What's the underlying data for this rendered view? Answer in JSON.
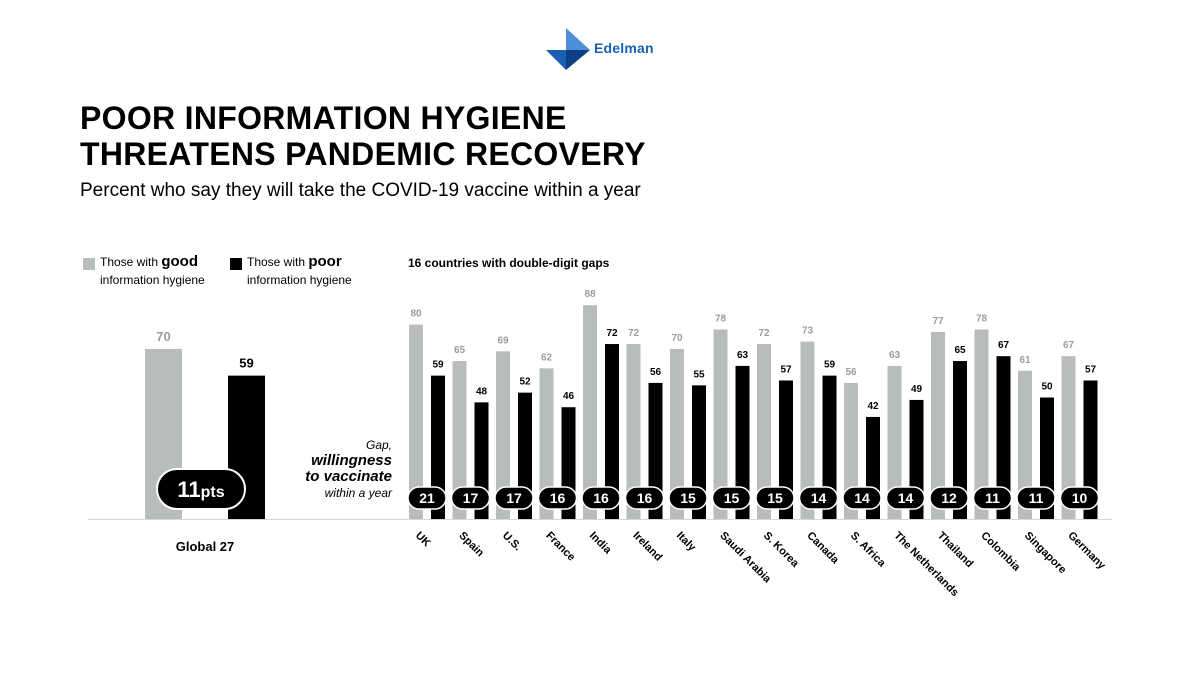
{
  "brand": {
    "name": "Edelman",
    "color": "#1a5fb4",
    "accent_light": "#4f8fd9"
  },
  "title_lines": [
    "POOR INFORMATION HYGIENE",
    "THREATENS PANDEMIC RECOVERY"
  ],
  "subtitle": "Percent who say they will take the COVID-19 vaccine within a year",
  "legend": {
    "good": {
      "prefix": "Those with ",
      "bold": "good",
      "line2": "information hygiene",
      "color": "#b9bcbc"
    },
    "poor": {
      "prefix": "Those with ",
      "bold": "poor",
      "line2": "information hygiene",
      "color": "#000000"
    }
  },
  "gap_label": {
    "line1": "Gap,",
    "line2": "willingness",
    "line3": "to vaccinate",
    "line4": "within a year"
  },
  "section_title": "16 countries with double-digit gaps",
  "chart_data": [
    {
      "type": "bar",
      "title": "Global 27",
      "categories": [
        "Global 27"
      ],
      "series": [
        {
          "name": "Those with good information hygiene",
          "values": [
            70
          ]
        },
        {
          "name": "Those with poor information hygiene",
          "values": [
            59
          ]
        }
      ],
      "gap_labels": [
        {
          "value": "11",
          "unit": "pts"
        }
      ],
      "ylim": [
        0,
        100
      ]
    },
    {
      "type": "bar",
      "title": "16 countries with double-digit gaps",
      "categories": [
        "UK",
        "Spain",
        "U.S.",
        "France",
        "India",
        "Ireland",
        "Italy",
        "Saudi Arabia",
        "S. Korea",
        "Canada",
        "S. Africa",
        "The Netherlands",
        "Thailand",
        "Colombia",
        "Singapore",
        "Germany"
      ],
      "series": [
        {
          "name": "Those with good information hygiene",
          "values": [
            80,
            65,
            69,
            62,
            88,
            72,
            70,
            78,
            72,
            73,
            56,
            63,
            77,
            78,
            61,
            67
          ]
        },
        {
          "name": "Those with poor information hygiene",
          "values": [
            59,
            48,
            52,
            46,
            72,
            56,
            55,
            63,
            57,
            59,
            42,
            49,
            65,
            67,
            50,
            57
          ]
        }
      ],
      "gaps": [
        21,
        17,
        17,
        16,
        16,
        16,
        15,
        15,
        15,
        14,
        14,
        14,
        12,
        11,
        11,
        10
      ],
      "ylim": [
        0,
        100
      ]
    }
  ]
}
